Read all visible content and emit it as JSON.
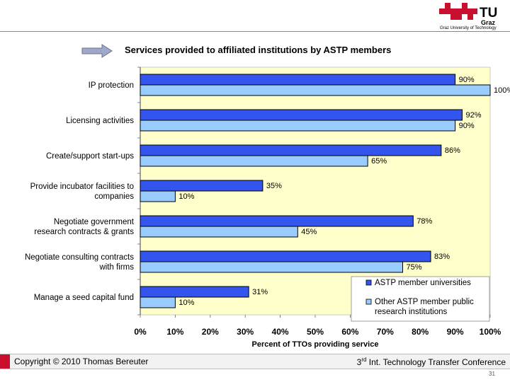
{
  "header": {
    "logo_text": "TU",
    "logo_sub": "Graz",
    "university": "Graz University of Technology"
  },
  "colors": {
    "series1": "#3355ee",
    "series2": "#99ccff",
    "plot_bg": "#ffffcc",
    "brand_red": "#c8102e"
  },
  "chart_data": {
    "type": "bar",
    "orientation": "horizontal",
    "title": "Services provided to affiliated institutions by ASTP members",
    "xlabel": "Percent of TTOs providing service",
    "ylabel": "",
    "xlim": [
      0,
      100
    ],
    "xticks": [
      "0%",
      "10%",
      "20%",
      "30%",
      "40%",
      "50%",
      "60%",
      "70%",
      "80%",
      "90%",
      "100%"
    ],
    "categories": [
      [
        "IP protection"
      ],
      [
        "Licensing activities"
      ],
      [
        "Create/support start-ups"
      ],
      [
        "Provide incubator facilities to",
        "companies"
      ],
      [
        "Negotiate government",
        "research contracts & grants"
      ],
      [
        "Negotiate consulting contracts",
        "with firms"
      ],
      [
        "Manage a seed capital fund"
      ]
    ],
    "series": [
      {
        "name": "ASTP member universities",
        "values": [
          90,
          92,
          86,
          35,
          78,
          83,
          31
        ]
      },
      {
        "name": "Other ASTP member public research institutions",
        "values": [
          100,
          90,
          65,
          10,
          45,
          75,
          10
        ]
      }
    ],
    "data_labels": [
      [
        "90%",
        "92%",
        "86%",
        "35%",
        "78%",
        "83%",
        "31%"
      ],
      [
        "100%",
        "90%",
        "65%",
        "10%",
        "45%",
        "75%",
        "10%"
      ]
    ],
    "legend": {
      "position": "bottom-right",
      "items": [
        [
          "ASTP member universities"
        ],
        [
          "Other ASTP member public",
          "research institutions"
        ]
      ]
    }
  },
  "footer": {
    "copyright": "Copyright © 2010 Thomas Bereuter",
    "conference_num": "3",
    "conference_sup": "rd",
    "conference_text": " Int. Technology Transfer Conference",
    "page_number": "31"
  }
}
